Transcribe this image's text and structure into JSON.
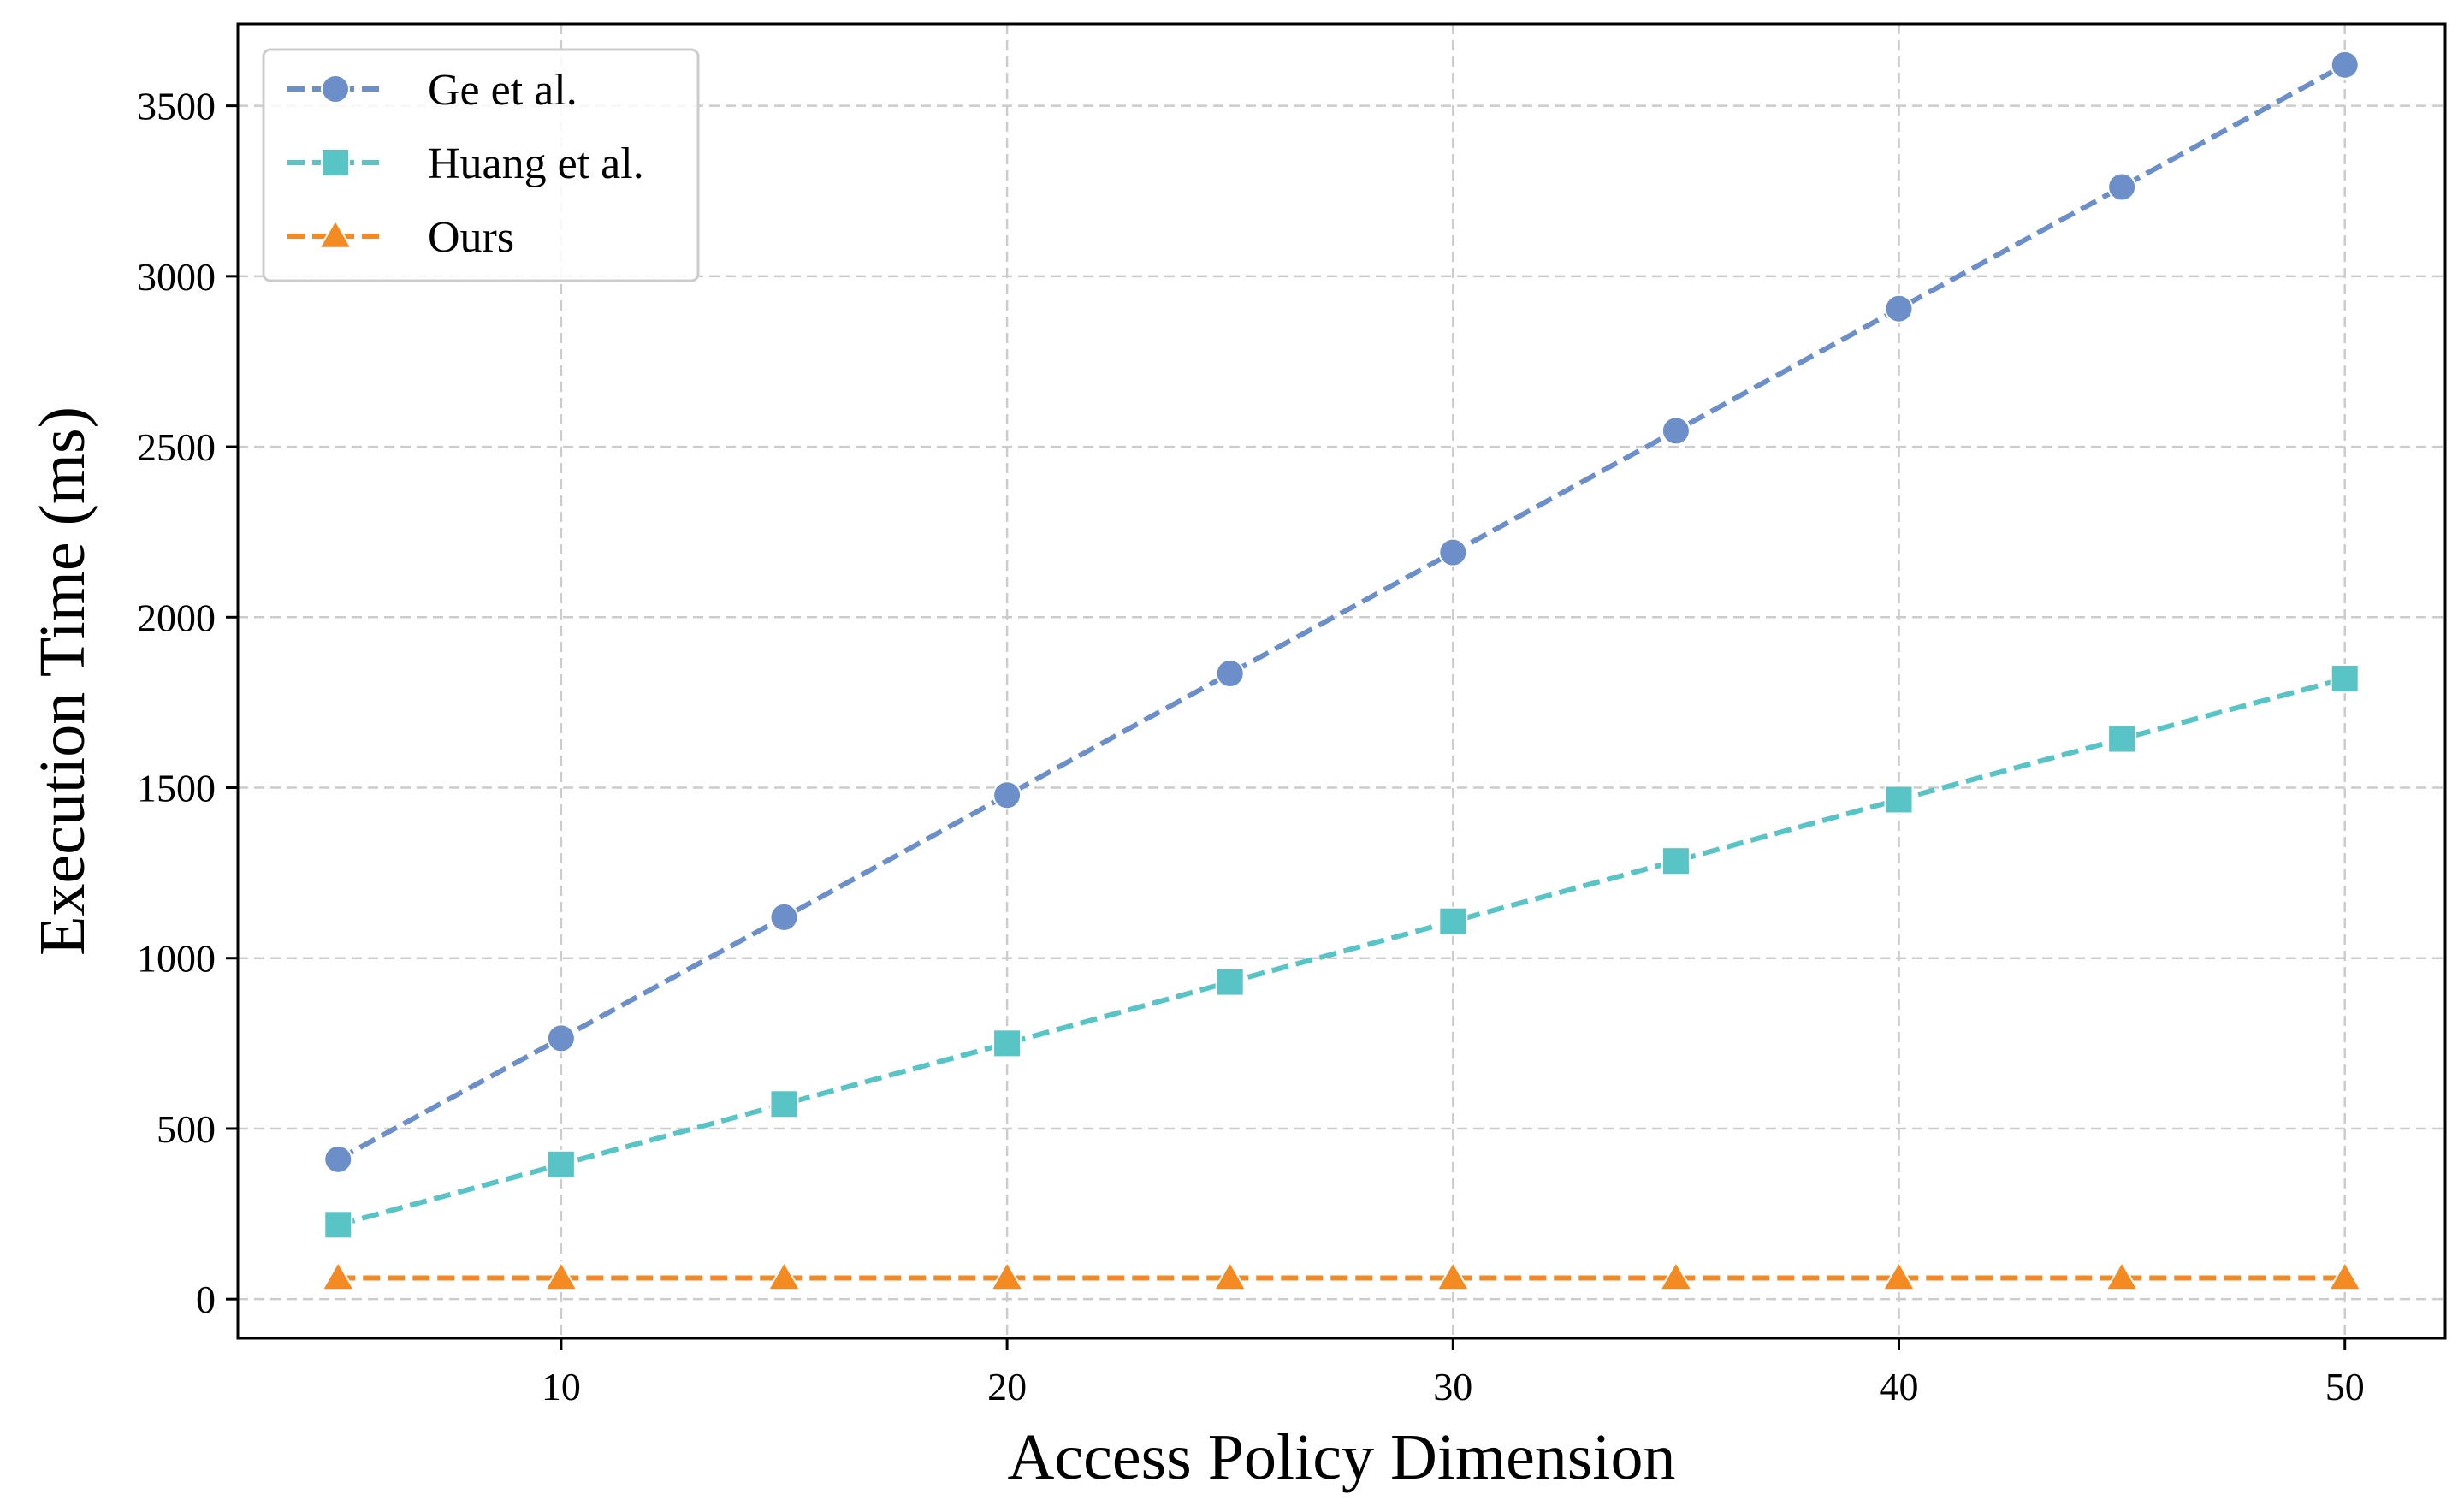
{
  "chart_data": {
    "type": "line",
    "title": "",
    "xlabel": "Access Policy Dimension",
    "ylabel": "Execution Time (ms)",
    "x": [
      5,
      10,
      15,
      20,
      25,
      30,
      35,
      40,
      45,
      50
    ],
    "xlim": [
      2.75,
      52.25
    ],
    "ylim": [
      -115,
      3740
    ],
    "xticks": [
      10,
      20,
      30,
      40,
      50
    ],
    "yticks": [
      0,
      500,
      1000,
      1500,
      2000,
      2500,
      3000,
      3500
    ],
    "grid": true,
    "legend_position": "top-left",
    "series": [
      {
        "name": "Ge et al.",
        "color": "#6c8ec9",
        "marker": "circle",
        "line_style": "dashed",
        "values": [
          410,
          765,
          1120,
          1478,
          1835,
          2190,
          2547,
          2905,
          3262,
          3620
        ]
      },
      {
        "name": "Huang et al.",
        "color": "#58c4c6",
        "marker": "square",
        "line_style": "dashed",
        "values": [
          218,
          395,
          572,
          750,
          930,
          1108,
          1285,
          1465,
          1643,
          1820
        ]
      },
      {
        "name": "Ours",
        "color": "#f48a22",
        "marker": "triangle",
        "line_style": "dashed",
        "values": [
          62,
          62,
          62,
          62,
          62,
          62,
          62,
          62,
          62,
          62
        ]
      }
    ]
  }
}
